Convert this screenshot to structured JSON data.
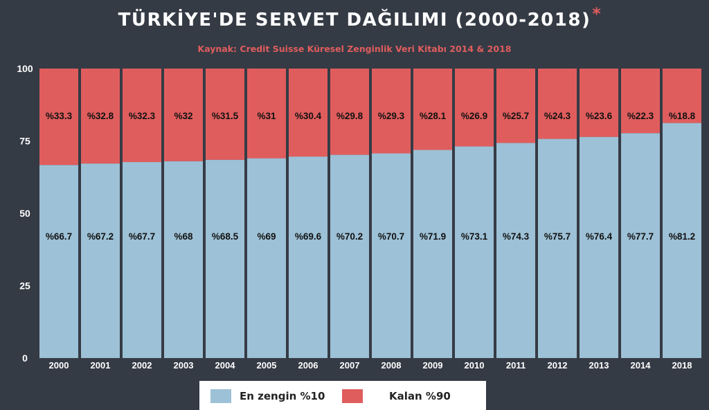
{
  "header": {
    "title": "TÜRKİYE'DE SERVET DAĞILIMI (2000-2018)",
    "asterisk": "*",
    "subtitle": "Kaynak: Credit Suisse Küresel Zenginlik Veri Kitabı 2014 & 2018"
  },
  "colors": {
    "background": "#353b45",
    "top10": "#9dc1d6",
    "rest90": "#e05d5d",
    "axis_text": "#ffffff",
    "label_text": "#111111"
  },
  "legend": {
    "items": [
      {
        "label": "En zengin %10",
        "color": "#9dc1d6"
      },
      {
        "label": "Kalan %90",
        "color": "#e05d5d"
      }
    ]
  },
  "chart_data": {
    "type": "bar",
    "stacked": true,
    "title": "TÜRKİYE'DE SERVET DAĞILIMI (2000-2018)",
    "categories": [
      "2000",
      "2001",
      "2002",
      "2003",
      "2004",
      "2005",
      "2006",
      "2007",
      "2008",
      "2009",
      "2010",
      "2011",
      "2012",
      "2013",
      "2014",
      "2018"
    ],
    "series": [
      {
        "name": "En zengin %10",
        "color": "#9dc1d6",
        "values": [
          66.7,
          67.2,
          67.7,
          68,
          68.5,
          69,
          69.6,
          70.2,
          70.7,
          71.9,
          73.1,
          74.3,
          75.7,
          76.4,
          77.7,
          81.2
        ],
        "labels": [
          "%66.7",
          "%67.2",
          "%67.7",
          "%68",
          "%68.5",
          "%69",
          "%69.6",
          "%70.2",
          "%70.7",
          "%71.9",
          "%73.1",
          "%74.3",
          "%75.7",
          "%76.4",
          "%77.7",
          "%81.2"
        ]
      },
      {
        "name": "Kalan %90",
        "color": "#e05d5d",
        "values": [
          33.3,
          32.8,
          32.3,
          32,
          31.5,
          31,
          30.4,
          29.8,
          29.3,
          28.1,
          26.9,
          25.7,
          24.3,
          23.6,
          22.3,
          18.8
        ],
        "labels": [
          "%33.3",
          "%32.8",
          "%32.3",
          "%32",
          "%31.5",
          "%31",
          "%30.4",
          "%29.8",
          "%29.3",
          "%28.1",
          "%26.9",
          "%25.7",
          "%24.3",
          "%23.6",
          "%22.3",
          "%18.8"
        ]
      }
    ],
    "yticks": [
      "0",
      "25",
      "50",
      "75",
      "100"
    ],
    "ylim": [
      0,
      100
    ],
    "grid": false,
    "legend_position": "bottom"
  }
}
